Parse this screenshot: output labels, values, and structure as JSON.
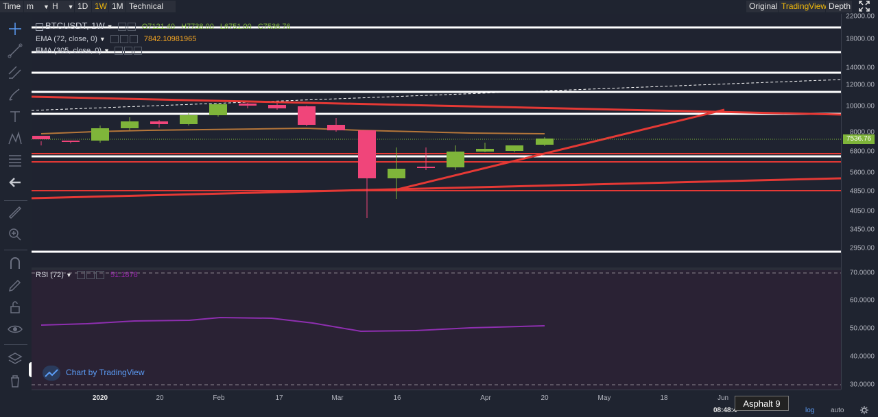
{
  "toolbar": {
    "time_label": "Time",
    "m_label": "m",
    "h_label": "H",
    "d1_label": "1D",
    "w1_label": "1W",
    "m1_label": "1M",
    "indicators_label": "Technical Ind",
    "original_label": "Original",
    "tradingview_label": "TradingView",
    "depth_label": "Depth",
    "active_color": "#f0b90b"
  },
  "legend": {
    "symbol": "BTCUSDT, 1W",
    "open": "O7121.40",
    "high": "H7738.00",
    "low": "L6751.00",
    "close": "C7536.76",
    "ema72_label": "EMA (72, close, 0)",
    "ema72_value": "7842.10981965",
    "ema305_label": "EMA (305, close, 0)",
    "rsi_label": "RSI (72)",
    "rsi_value": "51.1878"
  },
  "price_axis": {
    "labels": [
      "22000.00",
      "18000.00",
      "14000.00",
      "12000.00",
      "10000.00",
      "8000.00",
      "6800.00",
      "5600.00",
      "4850.00",
      "4050.00",
      "3450.00",
      "2950.00"
    ],
    "current_price": "7536.76",
    "rsi_labels": [
      "70.0000",
      "60.0000",
      "50.0000",
      "40.0000",
      "30.0000"
    ]
  },
  "time_axis": {
    "labels": [
      "2020",
      "20",
      "Feb",
      "17",
      "Mar",
      "16",
      "Apr",
      "20",
      "May",
      "18",
      "Jun"
    ]
  },
  "bottom": {
    "clock": "08:48:4",
    "log_label": "log",
    "auto_label": "auto",
    "tooltip": "Asphalt 9"
  },
  "watermark": "Chart by TradingView",
  "colors": {
    "up": "#7fb53a",
    "down": "#f0457a",
    "trendline": "#e53935",
    "level": "#ffffff",
    "ema": "#b5763a",
    "rsi": "#8e2fb0"
  }
}
